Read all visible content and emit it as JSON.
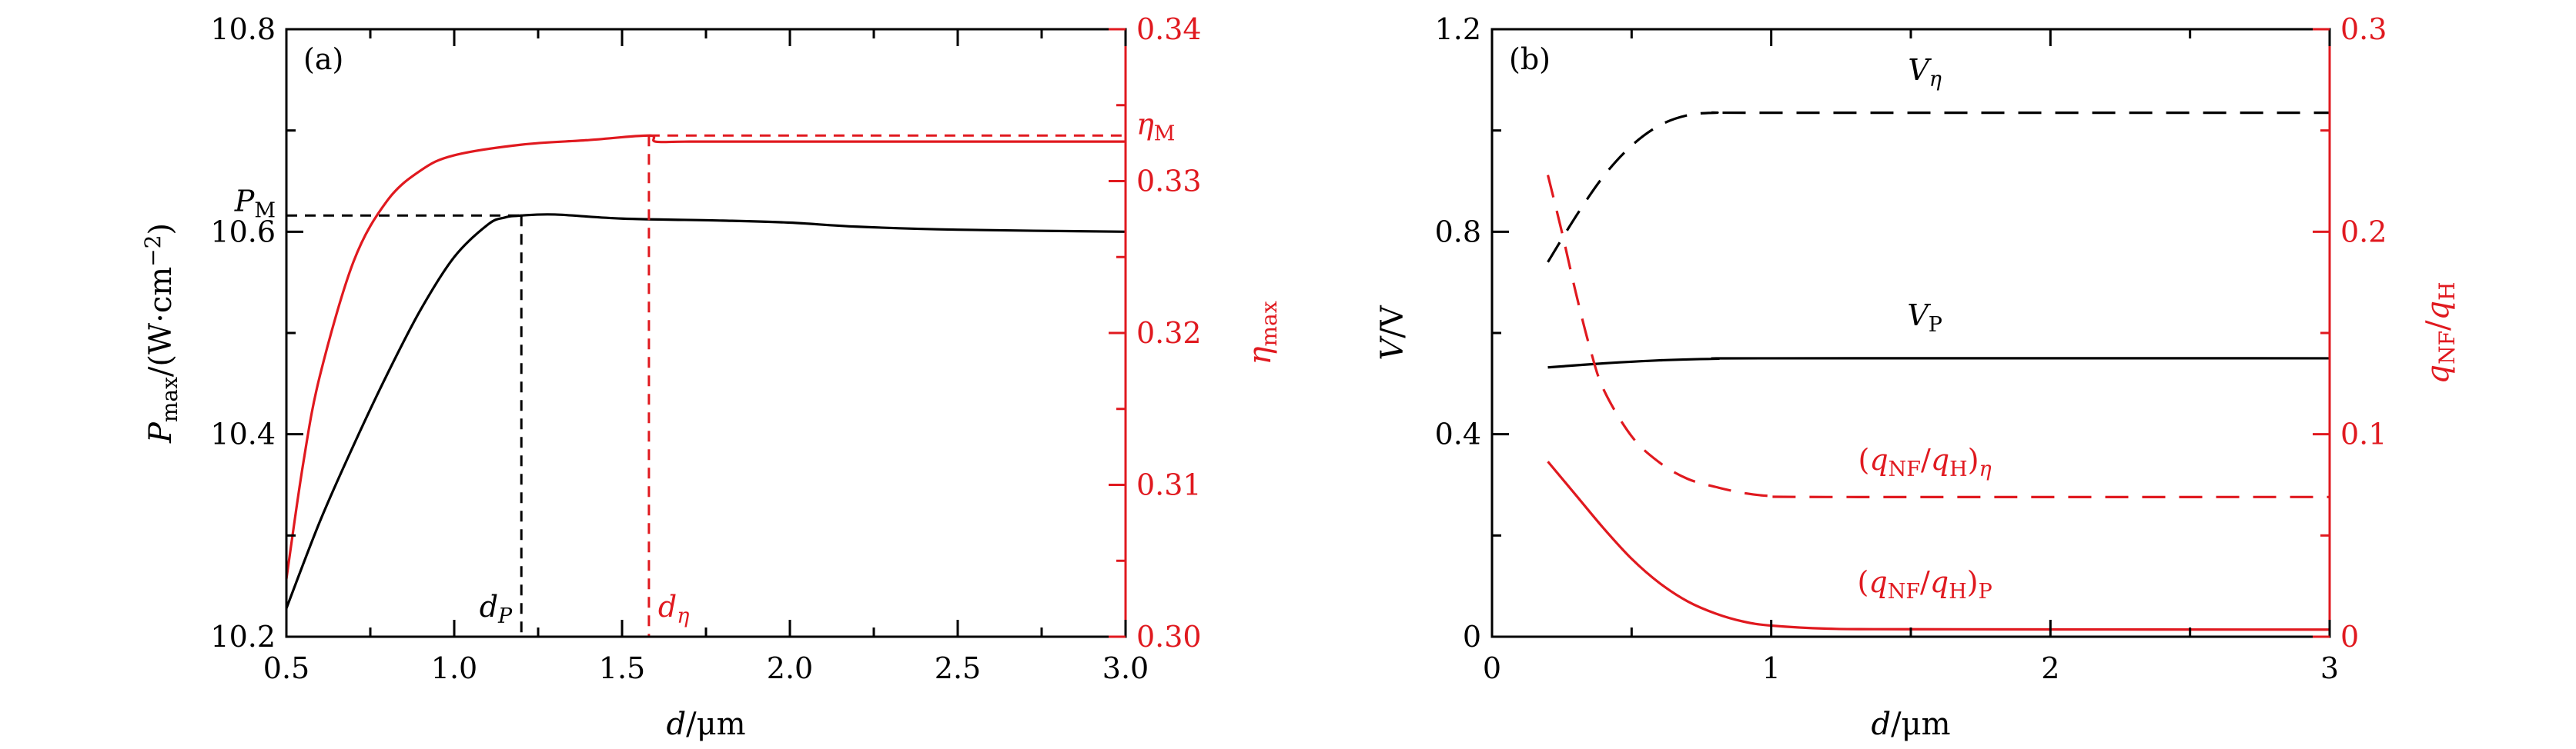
{
  "colors": {
    "black": "#000000",
    "red": "#e0191f"
  },
  "chart_data": [
    {
      "type": "line",
      "panel_label": "(a)",
      "xlabel": {
        "italic": "d",
        "rest": "/μm"
      },
      "ylabel_left": {
        "main": "P",
        "sub": "max",
        "rest": "/(W·cm",
        "sup": "−2",
        "close": ")"
      },
      "ylabel_right": {
        "main": "η",
        "sub": "max"
      },
      "xlim": [
        0.5,
        3.0
      ],
      "ylim_left": [
        10.2,
        10.8
      ],
      "ylim_right": [
        0.3,
        0.34
      ],
      "xticks": [
        0.5,
        1.0,
        1.5,
        2.0,
        2.5,
        3.0
      ],
      "xtick_labels": [
        "0.5",
        "1.0",
        "1.5",
        "2.0",
        "2.5",
        "3.0"
      ],
      "yticks_left": [
        10.2,
        10.4,
        10.6,
        10.8
      ],
      "ytick_labels_left": [
        "10.2",
        "10.4",
        "10.6",
        "10.8"
      ],
      "yticks_right": [
        0.3,
        0.31,
        0.32,
        0.33,
        0.34
      ],
      "ytick_labels_right": [
        "0.30",
        "0.31",
        "0.32",
        "0.33",
        "0.34"
      ],
      "series": [
        {
          "axis": "left",
          "color": "black",
          "style": "solid",
          "x": [
            0.5,
            0.6,
            0.7,
            0.8,
            0.9,
            1.0,
            1.1,
            1.15,
            1.2,
            1.3,
            1.5,
            1.8,
            2.0,
            2.2,
            2.5,
            3.0
          ],
          "y": [
            10.228,
            10.314,
            10.389,
            10.459,
            10.523,
            10.575,
            10.607,
            10.614,
            10.616,
            10.617,
            10.613,
            10.611,
            10.609,
            10.605,
            10.602,
            10.6
          ]
        },
        {
          "axis": "right",
          "color": "red",
          "style": "solid",
          "x": [
            0.5,
            0.55,
            0.6,
            0.7,
            0.8,
            0.9,
            1.0,
            1.2,
            1.4,
            1.58,
            1.6,
            1.7,
            2.0,
            3.0
          ],
          "y": [
            0.3038,
            0.3114,
            0.3172,
            0.3247,
            0.3287,
            0.3307,
            0.3317,
            0.3324,
            0.3327,
            0.333,
            0.3326,
            0.3326,
            0.3326,
            0.3326
          ]
        }
      ],
      "annotations": [
        {
          "text_main": "P",
          "text_sub": "M",
          "color": "black",
          "x": 1.2,
          "y": 10.616,
          "axis": "left",
          "guide": "horizontal-to-left"
        },
        {
          "text_main": "d",
          "text_sub": "P",
          "color": "black",
          "x": 1.2,
          "guide": "vertical-to-bottom"
        },
        {
          "text_main": "η",
          "text_sub": "M",
          "color": "red",
          "x": 1.58,
          "y": 0.333,
          "axis": "right",
          "guide": "horizontal-to-right"
        },
        {
          "text_main": "d",
          "text_sub": "η",
          "color": "red",
          "x": 1.58,
          "guide": "vertical-to-bottom"
        }
      ]
    },
    {
      "type": "line",
      "panel_label": "(b)",
      "xlabel": {
        "italic": "d",
        "rest": "/μm"
      },
      "ylabel_left": {
        "main": "V",
        "rest": "/V"
      },
      "ylabel_right": {
        "main": "q",
        "sub": "NF",
        "rest": "/",
        "main2": "q",
        "sub2": "H"
      },
      "xlim": [
        0,
        3
      ],
      "ylim_left": [
        0,
        1.2
      ],
      "ylim_right": [
        0,
        0.3
      ],
      "xticks": [
        0,
        1,
        2,
        3
      ],
      "xtick_labels": [
        "0",
        "1",
        "2",
        "3"
      ],
      "yticks_left": [
        0,
        0.4,
        0.8,
        1.2
      ],
      "ytick_labels_left": [
        "0",
        "0.4",
        "0.8",
        "1.2"
      ],
      "yticks_right": [
        0,
        0.1,
        0.2,
        0.3
      ],
      "ytick_labels_right": [
        "0",
        "0.1",
        "0.2",
        "0.3"
      ],
      "series": [
        {
          "name_main": "V",
          "name_sub": "η",
          "axis": "left",
          "color": "black",
          "style": "dashed",
          "x": [
            0.2,
            0.3,
            0.4,
            0.5,
            0.6,
            0.7,
            0.8,
            1.0,
            3.0
          ],
          "y": [
            0.74,
            0.83,
            0.91,
            0.97,
            1.01,
            1.03,
            1.035,
            1.035,
            1.035
          ]
        },
        {
          "name_main": "V",
          "name_sub": "P",
          "axis": "left",
          "color": "black",
          "style": "solid",
          "x": [
            0.2,
            0.4,
            0.6,
            0.8,
            1.0,
            3.0
          ],
          "y": [
            0.532,
            0.54,
            0.546,
            0.549,
            0.55,
            0.55
          ]
        },
        {
          "name": "(q_NF/q_H)_η",
          "axis": "right",
          "color": "red",
          "style": "dashed",
          "x": [
            0.2,
            0.25,
            0.3,
            0.35,
            0.4,
            0.5,
            0.6,
            0.7,
            0.8,
            0.9,
            1.0,
            1.2,
            3.0
          ],
          "y": [
            0.228,
            0.2,
            0.17,
            0.143,
            0.122,
            0.099,
            0.086,
            0.078,
            0.074,
            0.071,
            0.0695,
            0.069,
            0.069
          ]
        },
        {
          "name": "(q_NF/q_H)_P",
          "axis": "right",
          "color": "red",
          "style": "solid",
          "x": [
            0.2,
            0.3,
            0.4,
            0.5,
            0.6,
            0.7,
            0.8,
            0.9,
            1.0,
            1.2,
            1.5,
            3.0
          ],
          "y": [
            0.0865,
            0.07,
            0.0535,
            0.0385,
            0.0265,
            0.0175,
            0.0115,
            0.0075,
            0.0055,
            0.004,
            0.0037,
            0.0035
          ]
        }
      ],
      "series_labels": [
        {
          "for": "V_eta",
          "color": "black",
          "x": 1.55,
          "y": 1.1,
          "axis": "left",
          "main": "V",
          "sub": "η"
        },
        {
          "for": "V_P",
          "color": "black",
          "x": 1.55,
          "y": 0.615,
          "axis": "left",
          "main": "V",
          "sub": "P"
        },
        {
          "for": "q_eta",
          "color": "red",
          "x": 1.55,
          "y": 0.33,
          "axis": "left",
          "parts": [
            "(q",
            "NF",
            "/q",
            "H",
            ")",
            "η"
          ]
        },
        {
          "for": "q_P",
          "color": "red",
          "x": 1.55,
          "y": 0.088,
          "axis": "left",
          "parts": [
            "(q",
            "NF",
            "/q",
            "H",
            ")",
            "P"
          ]
        }
      ]
    }
  ]
}
